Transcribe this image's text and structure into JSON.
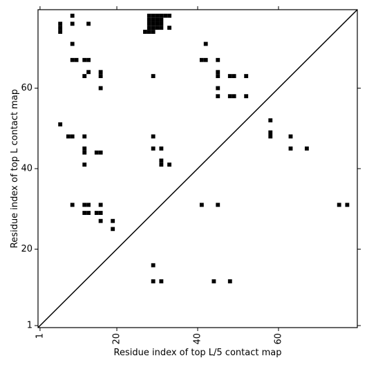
{
  "chart_data": {
    "type": "scatter",
    "marker": "square",
    "color": "#000000",
    "x_label": "Residue index of top L/5 contact map",
    "y_label": "Residue index of top L contact map",
    "xlim": [
      0.5,
      79.5
    ],
    "ylim": [
      0.5,
      79.5
    ],
    "xticks": [
      1,
      20,
      40,
      60
    ],
    "yticks": [
      1,
      20,
      40,
      60
    ],
    "diagonal": true,
    "x": [
      9,
      9,
      6,
      6,
      6,
      13,
      9,
      9,
      10,
      12,
      13,
      13,
      12,
      16,
      16,
      16,
      28,
      29,
      30,
      31,
      32,
      33,
      28,
      29,
      30,
      31,
      28,
      29,
      30,
      31,
      28,
      29,
      30,
      31,
      27,
      28,
      29,
      33,
      29,
      42,
      41,
      42,
      45,
      45,
      45,
      45,
      45,
      48,
      49,
      52,
      48,
      49,
      52,
      58,
      58,
      58,
      63,
      63,
      67,
      6,
      8,
      9,
      12,
      12,
      12,
      15,
      16,
      12,
      29,
      29,
      31,
      31,
      31,
      33,
      9,
      12,
      13,
      16,
      12,
      13,
      15,
      16,
      16,
      19,
      19,
      41,
      45,
      75,
      77,
      29,
      29,
      31,
      44,
      48
    ],
    "y": [
      78,
      76,
      74,
      75,
      76,
      76,
      71,
      67,
      67,
      67,
      67,
      64,
      63,
      64,
      63,
      60,
      78,
      78,
      78,
      78,
      78,
      78,
      77,
      77,
      77,
      77,
      76,
      76,
      76,
      76,
      75,
      75,
      75,
      75,
      74,
      74,
      74,
      75,
      63,
      71,
      67,
      67,
      67,
      64,
      63,
      60,
      58,
      63,
      63,
      63,
      58,
      58,
      58,
      52,
      49,
      48,
      48,
      45,
      45,
      51,
      48,
      48,
      48,
      45,
      44,
      44,
      44,
      41,
      48,
      45,
      45,
      42,
      41,
      41,
      31,
      31,
      31,
      31,
      29,
      29,
      29,
      29,
      27,
      27,
      25,
      31,
      31,
      31,
      31,
      16,
      12,
      12,
      12,
      12
    ]
  }
}
